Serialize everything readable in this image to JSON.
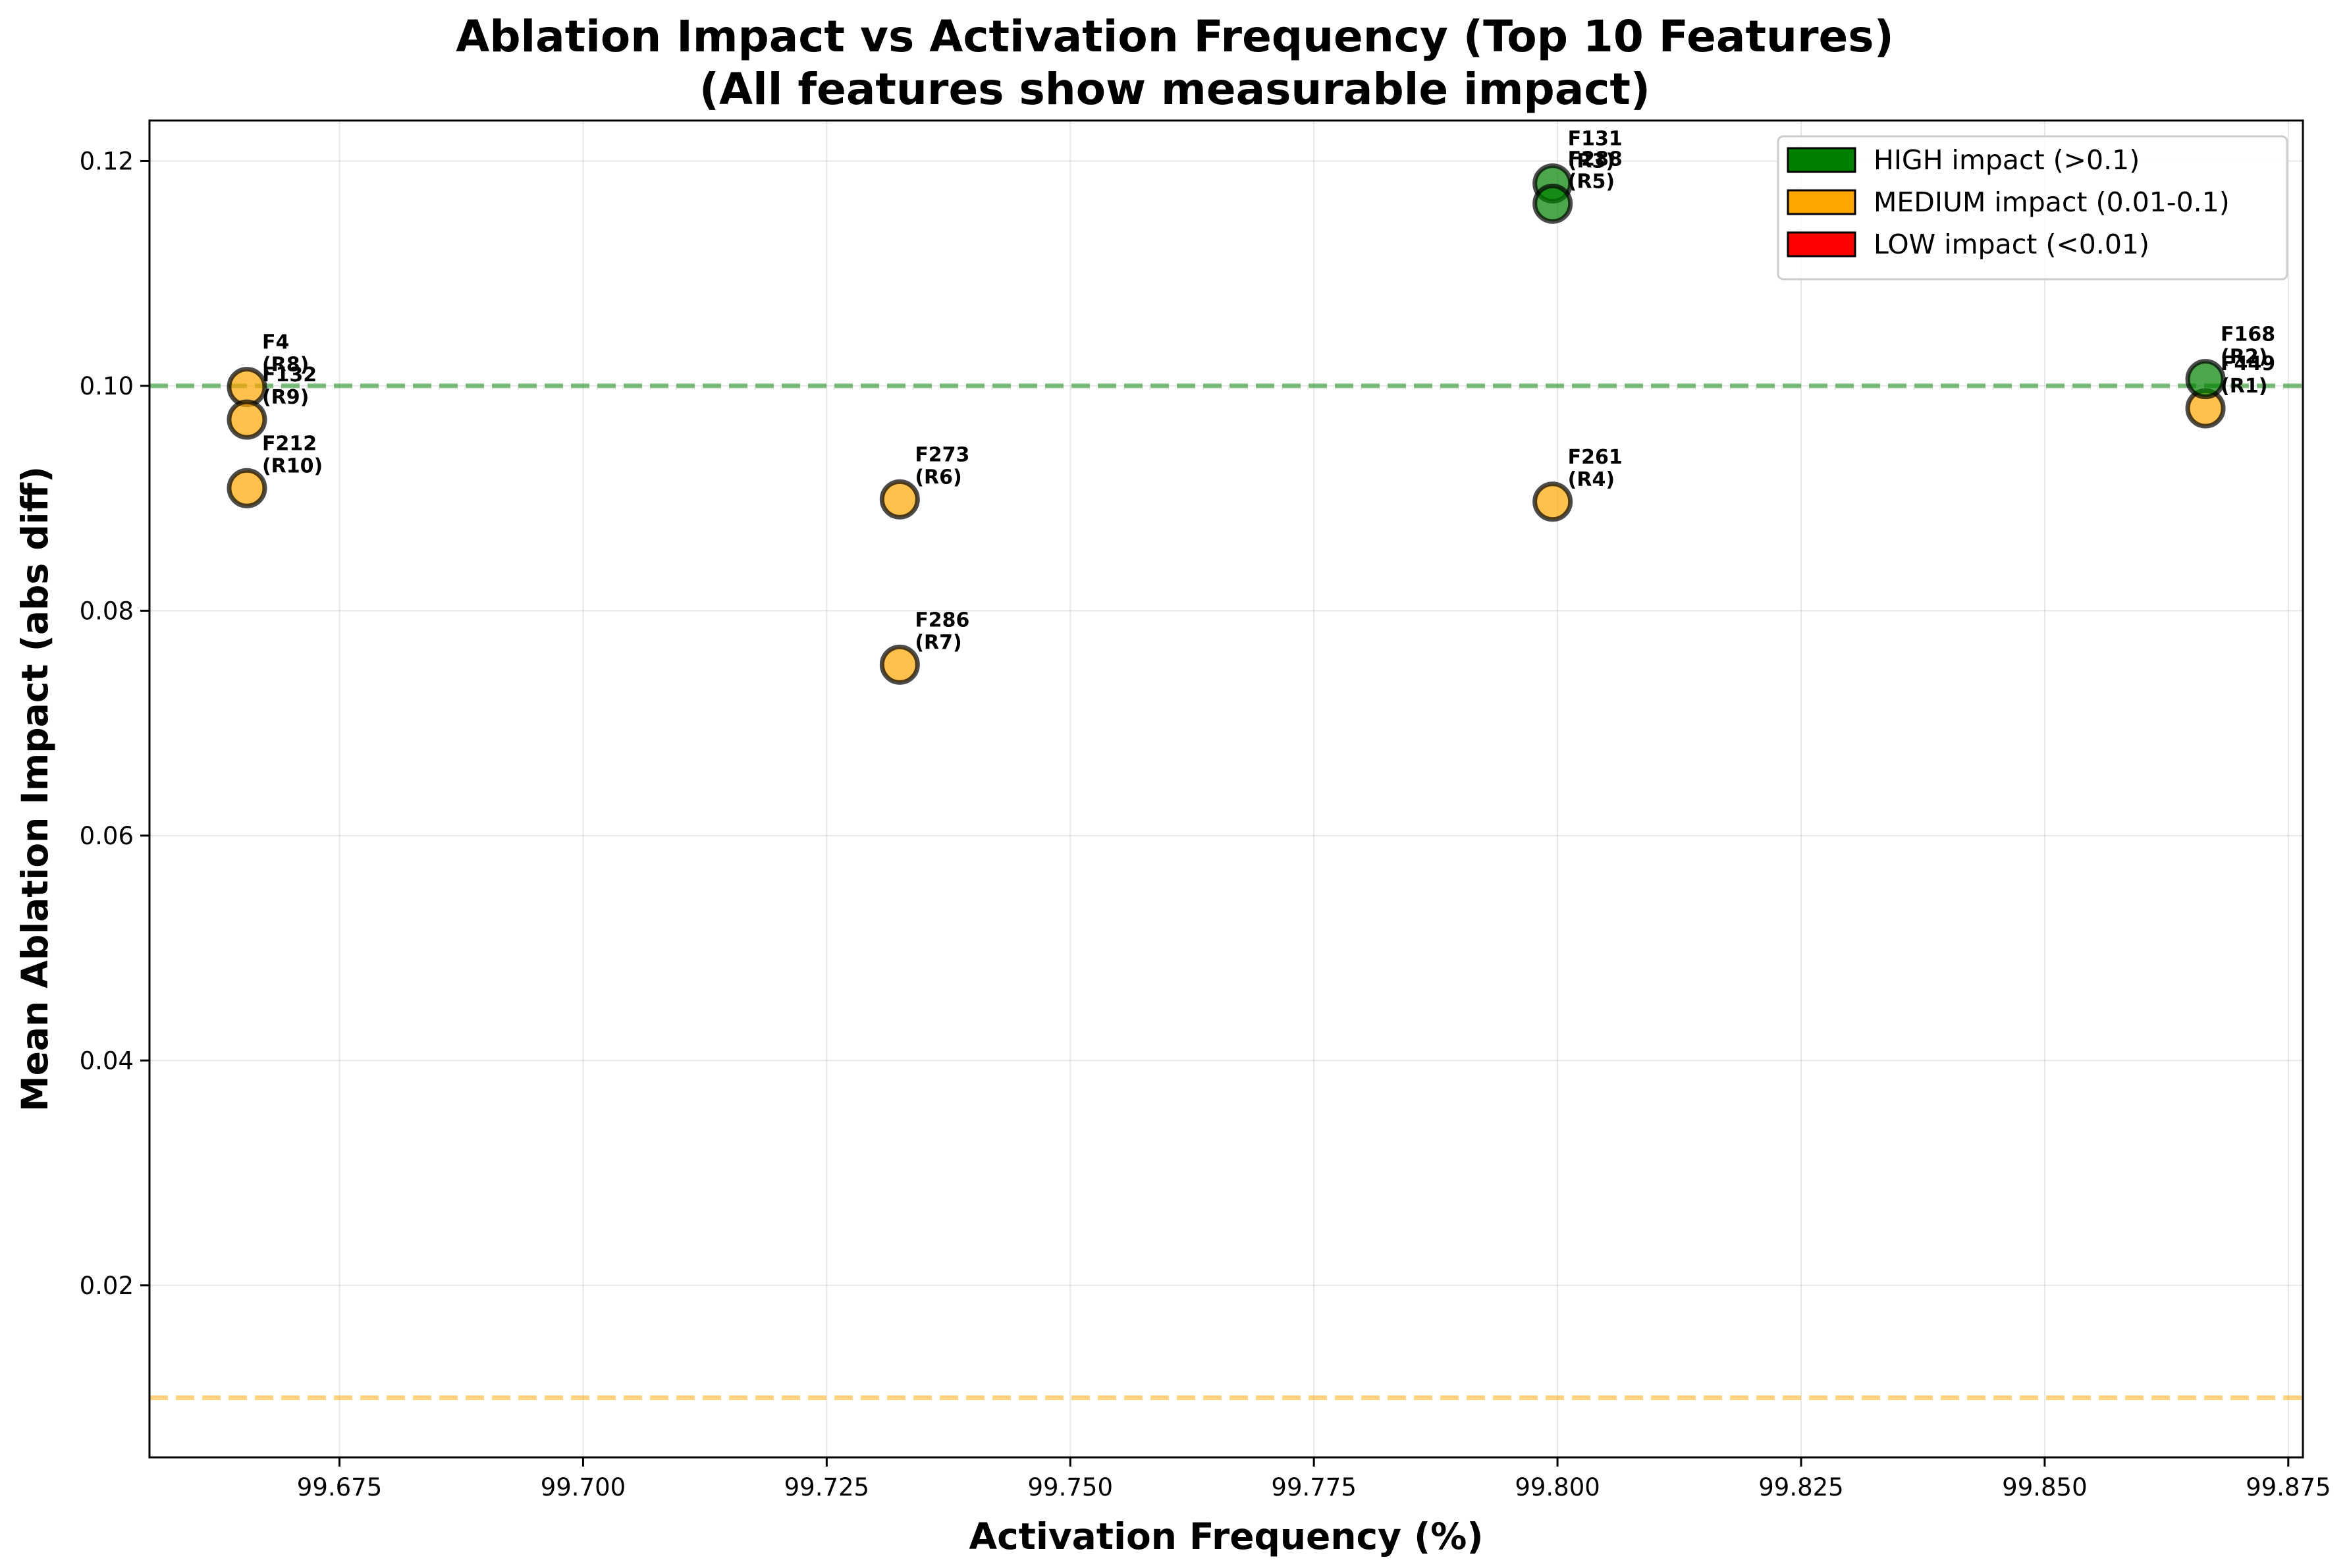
{
  "chart_data": {
    "type": "scatter",
    "title": "Ablation Impact vs Activation Frequency (Top 10 Features)",
    "subtitle": "(All features show measurable impact)",
    "xlabel": "Activation Frequency (%)",
    "ylabel": "Mean Ablation Impact (abs diff)",
    "xlim": [
      99.6555,
      99.8765
    ],
    "ylim": [
      0.0047,
      0.1236
    ],
    "x_ticks": [
      "99.675",
      "99.700",
      "99.725",
      "99.750",
      "99.775",
      "99.800",
      "99.825",
      "99.850",
      "99.875"
    ],
    "x_tick_values": [
      99.675,
      99.7,
      99.725,
      99.75,
      99.775,
      99.8,
      99.825,
      99.85,
      99.875
    ],
    "y_ticks": [
      "0.02",
      "0.04",
      "0.06",
      "0.08",
      "0.10",
      "0.12"
    ],
    "y_tick_values": [
      0.02,
      0.04,
      0.06,
      0.08,
      0.1,
      0.12
    ],
    "grid": true,
    "legend_position": "top-right",
    "legend": [
      {
        "label": "HIGH impact (>0.1)",
        "color": "#008000"
      },
      {
        "label": "MEDIUM impact (0.01-0.1)",
        "color": "#FFA500"
      },
      {
        "label": "LOW impact (<0.01)",
        "color": "#FF0000"
      }
    ],
    "threshold_lines": [
      {
        "y": 0.1,
        "color": "#008000"
      },
      {
        "y": 0.01,
        "color": "#FFA500"
      }
    ],
    "points": [
      {
        "feature": "F449",
        "rank": "(R1)",
        "x": 99.8665,
        "y": 0.098,
        "impact": "MEDIUM",
        "color": "#FFA500"
      },
      {
        "feature": "F168",
        "rank": "(R2)",
        "x": 99.8665,
        "y": 0.1006,
        "impact": "HIGH",
        "color": "#008000"
      },
      {
        "feature": "F131",
        "rank": "(R3)",
        "x": 99.7995,
        "y": 0.118,
        "impact": "HIGH",
        "color": "#008000"
      },
      {
        "feature": "F261",
        "rank": "(R4)",
        "x": 99.7995,
        "y": 0.0897,
        "impact": "MEDIUM",
        "color": "#FFA500"
      },
      {
        "feature": "F288",
        "rank": "(R5)",
        "x": 99.7995,
        "y": 0.1162,
        "impact": "HIGH",
        "color": "#008000"
      },
      {
        "feature": "F273",
        "rank": "(R6)",
        "x": 99.7325,
        "y": 0.0899,
        "impact": "MEDIUM",
        "color": "#FFA500"
      },
      {
        "feature": "F286",
        "rank": "(R7)",
        "x": 99.7325,
        "y": 0.0752,
        "impact": "MEDIUM",
        "color": "#FFA500"
      },
      {
        "feature": "F4",
        "rank": "(R8)",
        "x": 99.6655,
        "y": 0.0999,
        "impact": "MEDIUM",
        "color": "#FFA500"
      },
      {
        "feature": "F132",
        "rank": "(R9)",
        "x": 99.6655,
        "y": 0.097,
        "impact": "MEDIUM",
        "color": "#FFA500"
      },
      {
        "feature": "F212",
        "rank": "(R10)",
        "x": 99.6655,
        "y": 0.0909,
        "impact": "MEDIUM",
        "color": "#FFA500"
      }
    ]
  }
}
